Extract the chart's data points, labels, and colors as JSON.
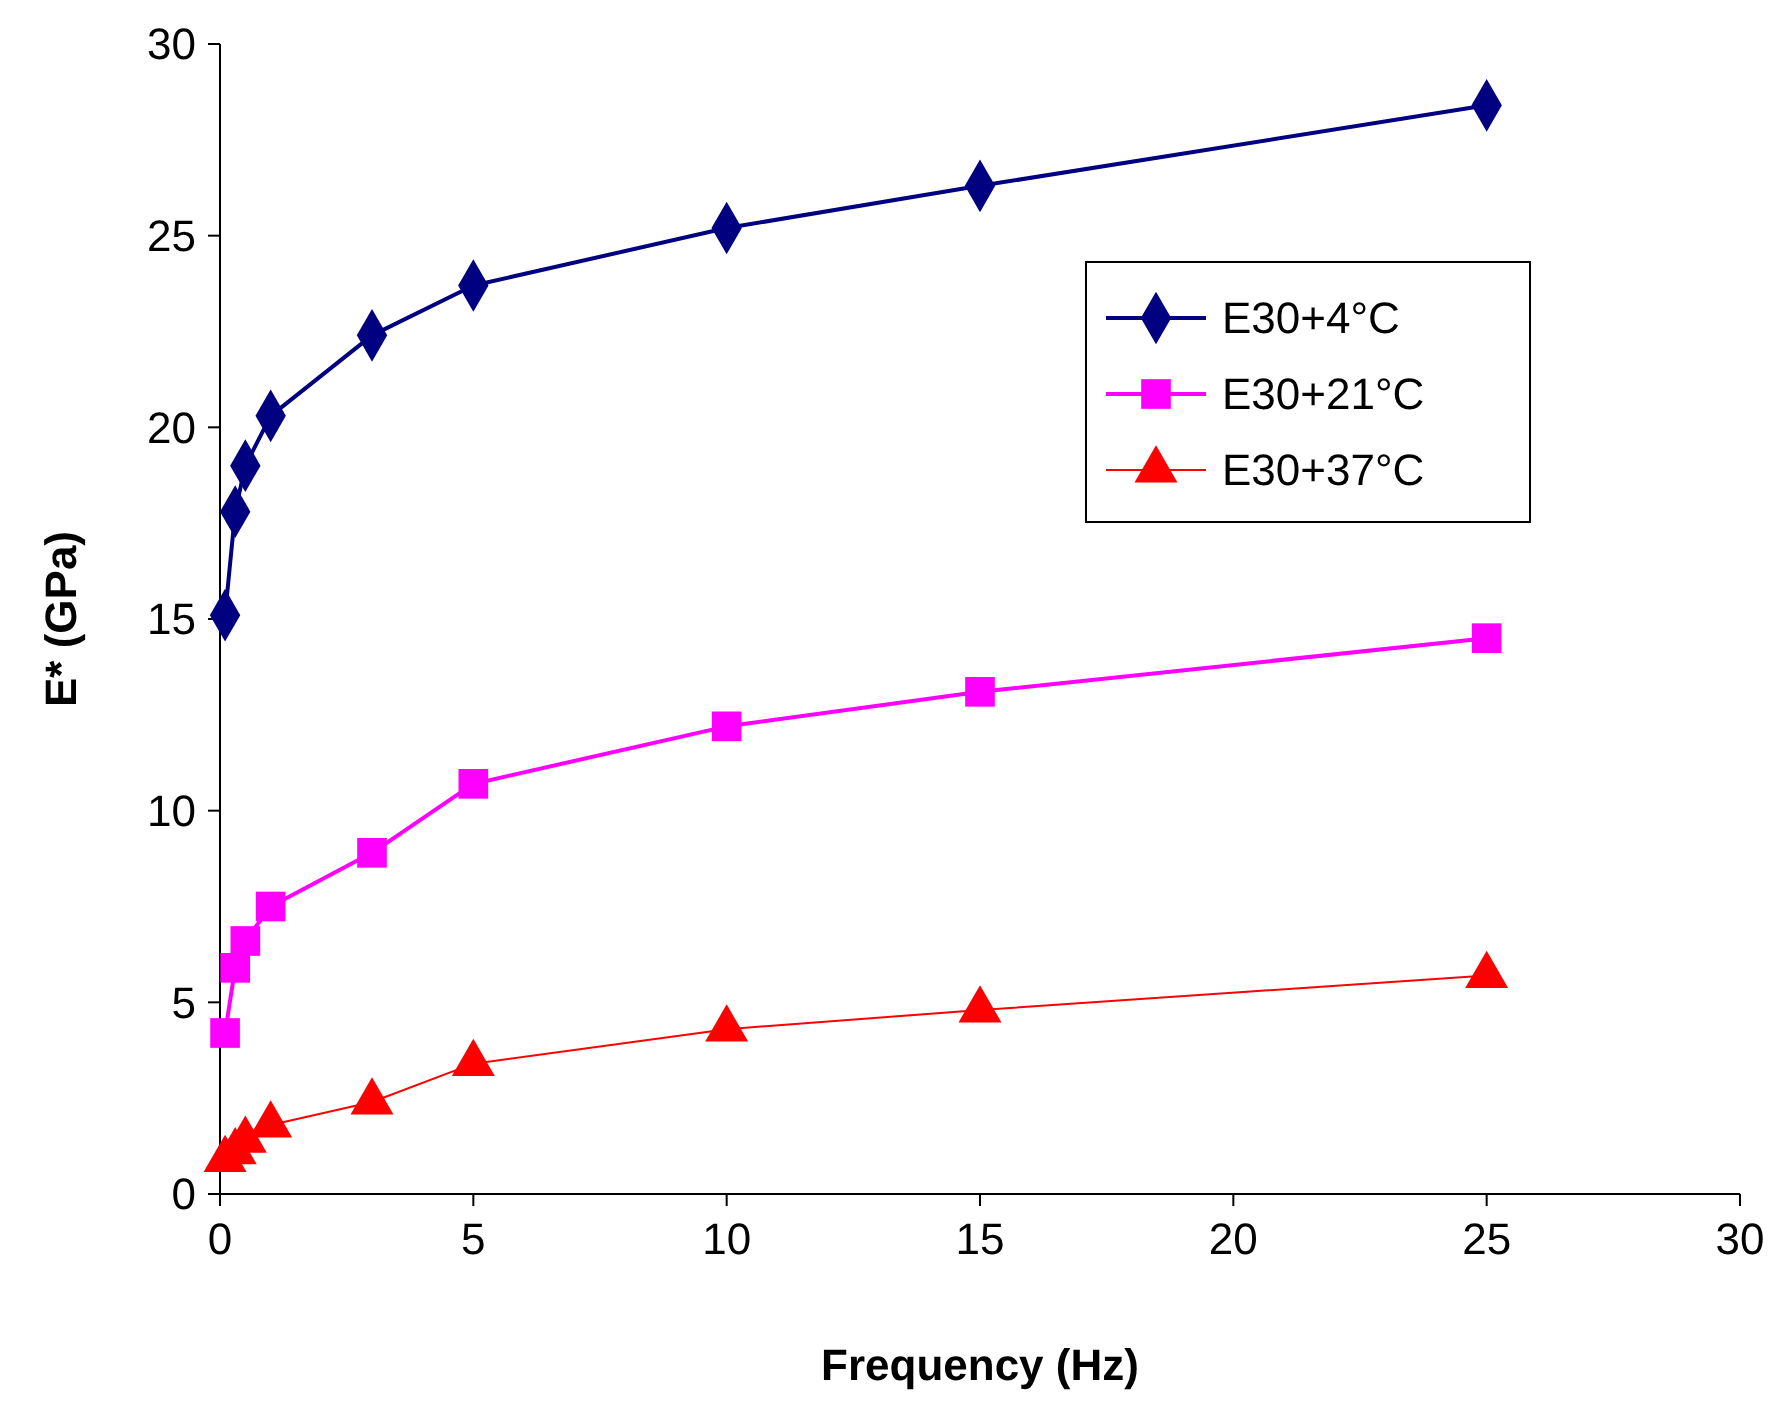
{
  "chart_data": {
    "type": "line",
    "xlabel": "Frequency (Hz)",
    "ylabel": "E* (GPa)",
    "x": [
      0.1,
      0.3,
      0.5,
      1,
      3,
      5,
      10,
      15,
      25
    ],
    "series": [
      {
        "name": "E30+4°C",
        "color": "#000080",
        "marker": "diamond",
        "values": [
          15.1,
          17.8,
          19.0,
          20.3,
          22.4,
          23.7,
          25.2,
          26.3,
          28.4
        ]
      },
      {
        "name": "E30+21°C",
        "color": "#ff00ff",
        "marker": "square",
        "values": [
          4.2,
          5.9,
          6.6,
          7.5,
          8.9,
          10.7,
          12.2,
          13.1,
          14.5
        ]
      },
      {
        "name": "E30+37°C",
        "color": "#ff0000",
        "marker": "triangle",
        "values": [
          0.9,
          1.1,
          1.4,
          1.8,
          2.4,
          3.4,
          4.3,
          4.8,
          5.7
        ]
      }
    ],
    "xlim": [
      0,
      30
    ],
    "ylim": [
      0,
      30
    ],
    "xticks": [
      0,
      5,
      10,
      15,
      20,
      25,
      30
    ],
    "yticks": [
      0,
      5,
      10,
      15,
      20,
      25,
      30
    ],
    "legend": "top right",
    "grid": false
  }
}
